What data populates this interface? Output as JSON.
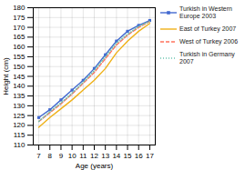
{
  "chart_data": {
    "type": "line",
    "xlabel": "Age (years)",
    "ylabel": "Height (cm)",
    "x": [
      7,
      8,
      9,
      10,
      11,
      12,
      13,
      14,
      15,
      16,
      17
    ],
    "xlim": [
      6.5,
      17.5
    ],
    "ylim": [
      110,
      180
    ],
    "xticks": [
      7,
      8,
      9,
      10,
      11,
      12,
      13,
      14,
      15,
      16,
      17
    ],
    "yticks": [
      110,
      115,
      120,
      125,
      130,
      135,
      140,
      145,
      150,
      155,
      160,
      165,
      170,
      175,
      180
    ],
    "grid": true,
    "legend": "right",
    "series": [
      {
        "name": "Turkish in Western\nEurope 2003",
        "values": [
          124,
          128,
          133,
          138,
          143,
          149,
          156,
          163,
          168,
          171,
          173.5
        ],
        "line_style": "solid",
        "marker": "square"
      },
      {
        "name": "East of Turkey 2007",
        "values": [
          119,
          124,
          128.5,
          133,
          138,
          143,
          149,
          157,
          163,
          168,
          172
        ],
        "line_style": "solid"
      },
      {
        "name": "West of Turkey 2006",
        "values": [
          122,
          126.5,
          131,
          136,
          141.5,
          147,
          154,
          161,
          166,
          170,
          173
        ],
        "line_style": "dashed"
      },
      {
        "name": "Turkish in Germany\n2007",
        "values": [
          122,
          127,
          131.5,
          136.5,
          142,
          148,
          155,
          162,
          166.5,
          170.5,
          173
        ],
        "line_style": "dotted"
      }
    ]
  }
}
